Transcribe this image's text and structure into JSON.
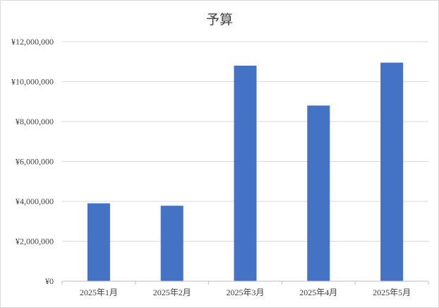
{
  "chart_data": {
    "type": "bar",
    "title": "予算",
    "categories": [
      "2025年1月",
      "2025年2月",
      "2025年3月",
      "2025年4月",
      "2025年5月"
    ],
    "values": [
      3900000,
      3780000,
      10800000,
      8800000,
      10950000
    ],
    "ylim": [
      0,
      12000000
    ],
    "yticks": [
      0,
      2000000,
      4000000,
      6000000,
      8000000,
      10000000,
      12000000
    ],
    "ytick_labels": [
      "¥0",
      "¥2,000,000",
      "¥4,000,000",
      "¥6,000,000",
      "¥8,000,000",
      "¥10,000,000",
      "¥12,000,000"
    ],
    "grid": true,
    "colors": {
      "bar": "#4472c4",
      "grid": "#d9d9d9",
      "axis": "#bfbfbf",
      "text": "#404040"
    }
  }
}
